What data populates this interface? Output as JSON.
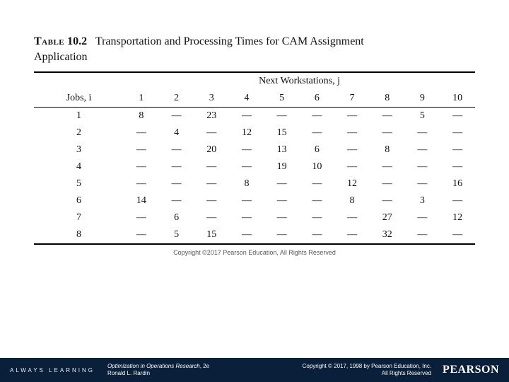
{
  "caption": {
    "label": "Table",
    "number": "10.2",
    "title_first_line": "Transportation and Processing Times for CAM Assignment",
    "title_second_line": "Application"
  },
  "table": {
    "super_header": "Next Workstations, j",
    "row_label_header": "Jobs, i",
    "col_headers": [
      "1",
      "2",
      "3",
      "4",
      "5",
      "6",
      "7",
      "8",
      "9",
      "10"
    ],
    "rows": [
      {
        "label": "1",
        "cells": [
          "8",
          "—",
          "23",
          "—",
          "—",
          "—",
          "—",
          "—",
          "5",
          "—"
        ]
      },
      {
        "label": "2",
        "cells": [
          "—",
          "4",
          "—",
          "12",
          "15",
          "—",
          "—",
          "—",
          "—",
          "—"
        ]
      },
      {
        "label": "3",
        "cells": [
          "—",
          "—",
          "20",
          "—",
          "13",
          "6",
          "—",
          "8",
          "—",
          "—"
        ]
      },
      {
        "label": "4",
        "cells": [
          "—",
          "—",
          "—",
          "—",
          "19",
          "10",
          "—",
          "—",
          "—",
          "—"
        ]
      },
      {
        "label": "5",
        "cells": [
          "—",
          "—",
          "—",
          "8",
          "—",
          "—",
          "12",
          "—",
          "—",
          "16"
        ]
      },
      {
        "label": "6",
        "cells": [
          "14",
          "—",
          "—",
          "—",
          "—",
          "—",
          "8",
          "—",
          "3",
          "—"
        ]
      },
      {
        "label": "7",
        "cells": [
          "—",
          "6",
          "—",
          "—",
          "—",
          "—",
          "—",
          "27",
          "—",
          "12"
        ]
      },
      {
        "label": "8",
        "cells": [
          "—",
          "5",
          "15",
          "—",
          "—",
          "—",
          "—",
          "32",
          "—",
          "—"
        ]
      }
    ],
    "inner_copyright": "Copyright ©2017 Pearson Education, All Rights Reserved"
  },
  "footer": {
    "always": "ALWAYS LEARNING",
    "book_title": "Optimization in Operations Research",
    "book_edition": ", 2e",
    "author": "Ronald L. Rardin",
    "copyright_line1": "Copyright © 2017, 1998 by Pearson Education, Inc.",
    "copyright_line2": "All Rights Reserved",
    "brand": "PEARSON"
  },
  "colors": {
    "footer_bg": "#0a1f3a",
    "text": "#111111",
    "inner_copy": "#555555"
  }
}
